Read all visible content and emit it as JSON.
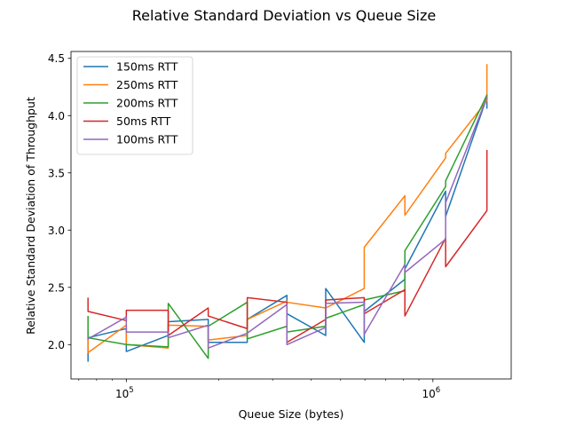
{
  "chart_data": {
    "type": "line",
    "title": "Relative Standard Deviation vs Queue Size",
    "xlabel": "Queue Size (bytes)",
    "ylabel": "Relative Standard Deviation of Throughput",
    "xscale": "log",
    "xlim": [
      66000,
      1800000
    ],
    "ylim": [
      1.7,
      4.56
    ],
    "xticks": [
      {
        "value": 100000,
        "base": "10",
        "exp": "5"
      },
      {
        "value": 1000000,
        "base": "10",
        "exp": "6"
      }
    ],
    "yticks": [
      2.0,
      2.5,
      3.0,
      3.5,
      4.0,
      4.5
    ],
    "grid": false,
    "legend_position": "top-left",
    "series": [
      {
        "name": "150ms RTT",
        "color": "#1f77b4",
        "points": [
          [
            75000,
            1.85
          ],
          [
            75000,
            2.06
          ],
          [
            100000,
            2.14
          ],
          [
            100000,
            1.94
          ],
          [
            137000,
            2.08
          ],
          [
            137000,
            2.2
          ],
          [
            185000,
            2.22
          ],
          [
            185000,
            2.02
          ],
          [
            248000,
            2.02
          ],
          [
            248000,
            2.22
          ],
          [
            334000,
            2.43
          ],
          [
            334000,
            2.27
          ],
          [
            447000,
            2.08
          ],
          [
            447000,
            2.49
          ],
          [
            597000,
            2.02
          ],
          [
            597000,
            2.29
          ],
          [
            810000,
            2.57
          ],
          [
            810000,
            2.66
          ],
          [
            1100000,
            3.34
          ],
          [
            1100000,
            3.12
          ],
          [
            1500000,
            4.16
          ],
          [
            1500000,
            4.06
          ]
        ]
      },
      {
        "name": "250ms RTT",
        "color": "#ff7f0e",
        "points": [
          [
            75000,
            2.06
          ],
          [
            75000,
            1.93
          ],
          [
            100000,
            2.17
          ],
          [
            100000,
            2.0
          ],
          [
            137000,
            1.97
          ],
          [
            137000,
            2.17
          ],
          [
            185000,
            2.16
          ],
          [
            185000,
            2.04
          ],
          [
            248000,
            2.08
          ],
          [
            248000,
            2.22
          ],
          [
            334000,
            2.38
          ],
          [
            334000,
            2.37
          ],
          [
            447000,
            2.32
          ],
          [
            447000,
            2.32
          ],
          [
            597000,
            2.49
          ],
          [
            597000,
            2.85
          ],
          [
            810000,
            3.3
          ],
          [
            810000,
            3.13
          ],
          [
            1100000,
            3.63
          ],
          [
            1100000,
            3.67
          ],
          [
            1500000,
            4.13
          ],
          [
            1500000,
            4.45
          ]
        ]
      },
      {
        "name": "200ms RTT",
        "color": "#2ca02c",
        "points": [
          [
            75000,
            2.25
          ],
          [
            75000,
            2.06
          ],
          [
            100000,
            2.0
          ],
          [
            100000,
            2.0
          ],
          [
            137000,
            1.98
          ],
          [
            137000,
            2.36
          ],
          [
            185000,
            1.88
          ],
          [
            185000,
            2.16
          ],
          [
            248000,
            2.37
          ],
          [
            248000,
            2.05
          ],
          [
            334000,
            2.16
          ],
          [
            334000,
            2.11
          ],
          [
            447000,
            2.16
          ],
          [
            447000,
            2.23
          ],
          [
            597000,
            2.35
          ],
          [
            597000,
            2.39
          ],
          [
            810000,
            2.47
          ],
          [
            810000,
            2.82
          ],
          [
            1100000,
            3.38
          ],
          [
            1100000,
            3.43
          ],
          [
            1500000,
            4.18
          ],
          [
            1500000,
            4.17
          ]
        ]
      },
      {
        "name": "50ms RTT",
        "color": "#d62728",
        "points": [
          [
            75000,
            2.41
          ],
          [
            75000,
            2.29
          ],
          [
            100000,
            2.21
          ],
          [
            100000,
            2.3
          ],
          [
            137000,
            2.3
          ],
          [
            137000,
            2.08
          ],
          [
            185000,
            2.32
          ],
          [
            185000,
            2.25
          ],
          [
            248000,
            2.14
          ],
          [
            248000,
            2.41
          ],
          [
            334000,
            2.37
          ],
          [
            334000,
            2.02
          ],
          [
            447000,
            2.22
          ],
          [
            447000,
            2.39
          ],
          [
            597000,
            2.41
          ],
          [
            597000,
            2.27
          ],
          [
            810000,
            2.48
          ],
          [
            810000,
            2.25
          ],
          [
            1100000,
            2.93
          ],
          [
            1100000,
            2.68
          ],
          [
            1500000,
            3.17
          ],
          [
            1500000,
            3.7
          ]
        ]
      },
      {
        "name": "100ms RTT",
        "color": "#9467bd",
        "points": [
          [
            75000,
            2.06
          ],
          [
            75000,
            2.05
          ],
          [
            100000,
            2.24
          ],
          [
            100000,
            2.11
          ],
          [
            137000,
            2.11
          ],
          [
            137000,
            2.06
          ],
          [
            185000,
            2.17
          ],
          [
            185000,
            1.97
          ],
          [
            248000,
            2.1
          ],
          [
            248000,
            2.1
          ],
          [
            334000,
            2.35
          ],
          [
            334000,
            2.0
          ],
          [
            447000,
            2.15
          ],
          [
            447000,
            2.36
          ],
          [
            597000,
            2.37
          ],
          [
            597000,
            2.09
          ],
          [
            810000,
            2.7
          ],
          [
            810000,
            2.63
          ],
          [
            1100000,
            2.92
          ],
          [
            1100000,
            3.24
          ],
          [
            1500000,
            4.16
          ],
          [
            1500000,
            4.15
          ]
        ]
      }
    ]
  }
}
